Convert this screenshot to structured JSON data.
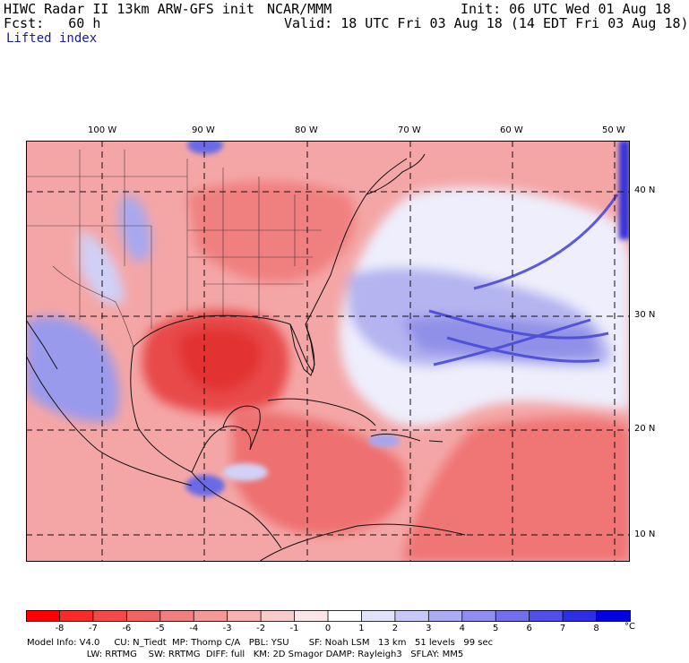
{
  "header": {
    "title": "HIWC Radar II 13km ARW-GFS init",
    "org": "NCAR/MMM",
    "init": "Init: 06 UTC Wed 01 Aug 18",
    "fcst": "Fcst:   60 h",
    "valid": "Valid: 18 UTC Fri 03 Aug 18 (14 EDT Fri 03 Aug 18)",
    "field": "Lifted index"
  },
  "map": {
    "lon_labels": [
      "100 W",
      "90 W",
      "80 W",
      "70 W",
      "60 W",
      "50 W"
    ],
    "lat_labels": [
      "40 N",
      "30 N",
      "20 N",
      "10 N"
    ],
    "colors": {
      "negative": "#e8232b",
      "positive": "#1a22d6",
      "neutral": "#ffffff"
    }
  },
  "colorbar": {
    "ticks": [
      "-8",
      "-7",
      "-6",
      "-5",
      "-4",
      "-3",
      "-2",
      "-1",
      "0",
      "1",
      "2",
      "3",
      "4",
      "5",
      "6",
      "7",
      "8"
    ],
    "unit": "°C",
    "bins": [
      "#ff0000",
      "#f82a2a",
      "#f54848",
      "#f26464",
      "#f27f7f",
      "#f49898",
      "#f7b2b2",
      "#f9cccc",
      "#fae6e6",
      "#ffffff",
      "#e2e2fb",
      "#c8c8f7",
      "#acacf3",
      "#8e8ef0",
      "#7070ec",
      "#5050e8",
      "#2e2ee4",
      "#0000e0"
    ]
  },
  "footer": {
    "line1": "Model Info: V4.0     CU: N_Tiedt  MP: Thomp C/A   PBL: YSU       SF: Noah LSM   13 km   51 levels   99 sec",
    "line2": "                     LW: RRTMG    SW: RRTMG  DIFF: full   KM: 2D Smagor DAMP: Rayleigh3   SFLAY: MM5"
  }
}
